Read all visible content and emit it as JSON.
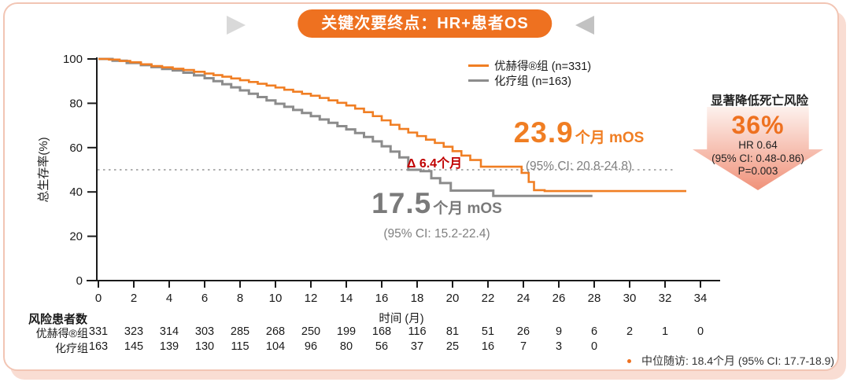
{
  "page": {
    "title": "关键次要终点：HR+患者OS"
  },
  "chart_data": {
    "type": "line",
    "subtype": "kaplan-meier-step",
    "title": "关键次要终点：HR+患者OS",
    "xlabel": "时间 (月)",
    "ylabel": "总生存率(%)",
    "xlim": [
      0,
      34
    ],
    "ylim": [
      0,
      100
    ],
    "x_ticks": [
      0,
      2,
      4,
      6,
      8,
      10,
      12,
      14,
      16,
      18,
      20,
      22,
      24,
      26,
      28,
      30,
      32,
      34
    ],
    "y_ticks": [
      0,
      20,
      40,
      60,
      80,
      100
    ],
    "grid": false,
    "legend_position": "top-right",
    "reference_line_y": 50,
    "series": [
      {
        "name": "优赫得®组 (n=331)",
        "color": "#f07e23",
        "median_os_months": 23.9,
        "median_ci": "20.8-24.8",
        "points": [
          [
            0,
            100
          ],
          [
            0.6,
            99.7
          ],
          [
            1.2,
            99.1
          ],
          [
            1.8,
            98.5
          ],
          [
            2.4,
            97.6
          ],
          [
            3,
            96.8
          ],
          [
            3.6,
            96.2
          ],
          [
            4.2,
            95.6
          ],
          [
            4.8,
            95
          ],
          [
            5.4,
            94.2
          ],
          [
            6,
            93.4
          ],
          [
            6.5,
            92.7
          ],
          [
            7,
            92
          ],
          [
            7.5,
            91.2
          ],
          [
            8,
            90.4
          ],
          [
            8.5,
            89.6
          ],
          [
            9,
            88.8
          ],
          [
            9.5,
            88
          ],
          [
            10,
            87.1
          ],
          [
            10.5,
            86.1
          ],
          [
            11,
            85.2
          ],
          [
            11.5,
            84.3
          ],
          [
            12,
            83.4
          ],
          [
            12.5,
            82.4
          ],
          [
            13,
            81.3
          ],
          [
            13.5,
            80.2
          ],
          [
            14,
            79
          ],
          [
            14.5,
            77.6
          ],
          [
            15,
            76
          ],
          [
            15.5,
            74.2
          ],
          [
            16,
            72.3
          ],
          [
            16.5,
            70.3
          ],
          [
            17,
            68.4
          ],
          [
            17.5,
            66.8
          ],
          [
            18,
            65.2
          ],
          [
            18.5,
            63.6
          ],
          [
            19,
            62.1
          ],
          [
            19.5,
            60.4
          ],
          [
            20,
            58.4
          ],
          [
            20.5,
            56.4
          ],
          [
            21,
            54.4
          ],
          [
            21.6,
            51.4
          ],
          [
            23.9,
            48.6
          ],
          [
            24.3,
            44.5
          ],
          [
            24.6,
            40.8
          ],
          [
            25.2,
            40.4
          ],
          [
            33.2,
            40.4
          ]
        ]
      },
      {
        "name": "化疗组  (n=163)",
        "color": "#8c8c8c",
        "median_os_months": 17.5,
        "median_ci": "15.2-22.4",
        "points": [
          [
            0,
            100
          ],
          [
            0.8,
            99.2
          ],
          [
            1.6,
            98.2
          ],
          [
            2.4,
            97.2
          ],
          [
            3,
            96.3
          ],
          [
            3.6,
            95.5
          ],
          [
            4.2,
            94.8
          ],
          [
            4.8,
            93.8
          ],
          [
            5.4,
            92.6
          ],
          [
            6,
            91.3
          ],
          [
            6.5,
            90
          ],
          [
            7,
            88.6
          ],
          [
            7.5,
            87.2
          ],
          [
            8,
            85.8
          ],
          [
            8.5,
            84.3
          ],
          [
            9,
            82.8
          ],
          [
            9.5,
            81.3
          ],
          [
            10,
            79.8
          ],
          [
            10.5,
            78.4
          ],
          [
            11,
            77
          ],
          [
            11.5,
            75.6
          ],
          [
            12,
            74.2
          ],
          [
            12.5,
            72.7
          ],
          [
            13,
            71.2
          ],
          [
            13.5,
            69.7
          ],
          [
            14,
            68.2
          ],
          [
            14.5,
            66.6
          ],
          [
            15,
            64.8
          ],
          [
            15.5,
            62.8
          ],
          [
            16,
            60.6
          ],
          [
            16.5,
            58.2
          ],
          [
            17,
            55.6
          ],
          [
            17.5,
            50
          ],
          [
            18.2,
            49.4
          ],
          [
            18.8,
            46.2
          ],
          [
            19.3,
            44
          ],
          [
            19.9,
            40.6
          ],
          [
            22.3,
            38.2
          ],
          [
            27.9,
            38.2
          ]
        ]
      }
    ]
  },
  "annotations": {
    "treatment_mos_value": "23.9",
    "treatment_mos_unit": "个月 mOS",
    "treatment_ci": "(95% CI: 20.8-24.8)",
    "control_mos_value": "17.5",
    "control_mos_unit": "个月 mOS",
    "control_ci": "(95% CI: 15.2-22.4)",
    "delta_label": "Δ 6.4个月"
  },
  "risk_panel": {
    "title": "显著降低死亡风险",
    "percent": "36%",
    "hr": "HR 0.64",
    "ci": "(95% CI: 0.48-0.86)",
    "p": "P=0.003"
  },
  "risk_table": {
    "header": "风险患者数",
    "time_label": "时间 (月)",
    "rows": [
      {
        "label": "优赫得®组",
        "values": [
          331,
          323,
          314,
          303,
          285,
          268,
          250,
          199,
          168,
          116,
          81,
          51,
          26,
          9,
          6,
          2,
          1,
          0
        ]
      },
      {
        "label": "化疗组",
        "values": [
          163,
          145,
          139,
          130,
          115,
          104,
          96,
          80,
          56,
          37,
          25,
          16,
          7,
          3,
          0
        ]
      }
    ]
  },
  "footnote": {
    "text": "中位随访: 18.4个月  (95% CI: 17.7-18.9)"
  }
}
